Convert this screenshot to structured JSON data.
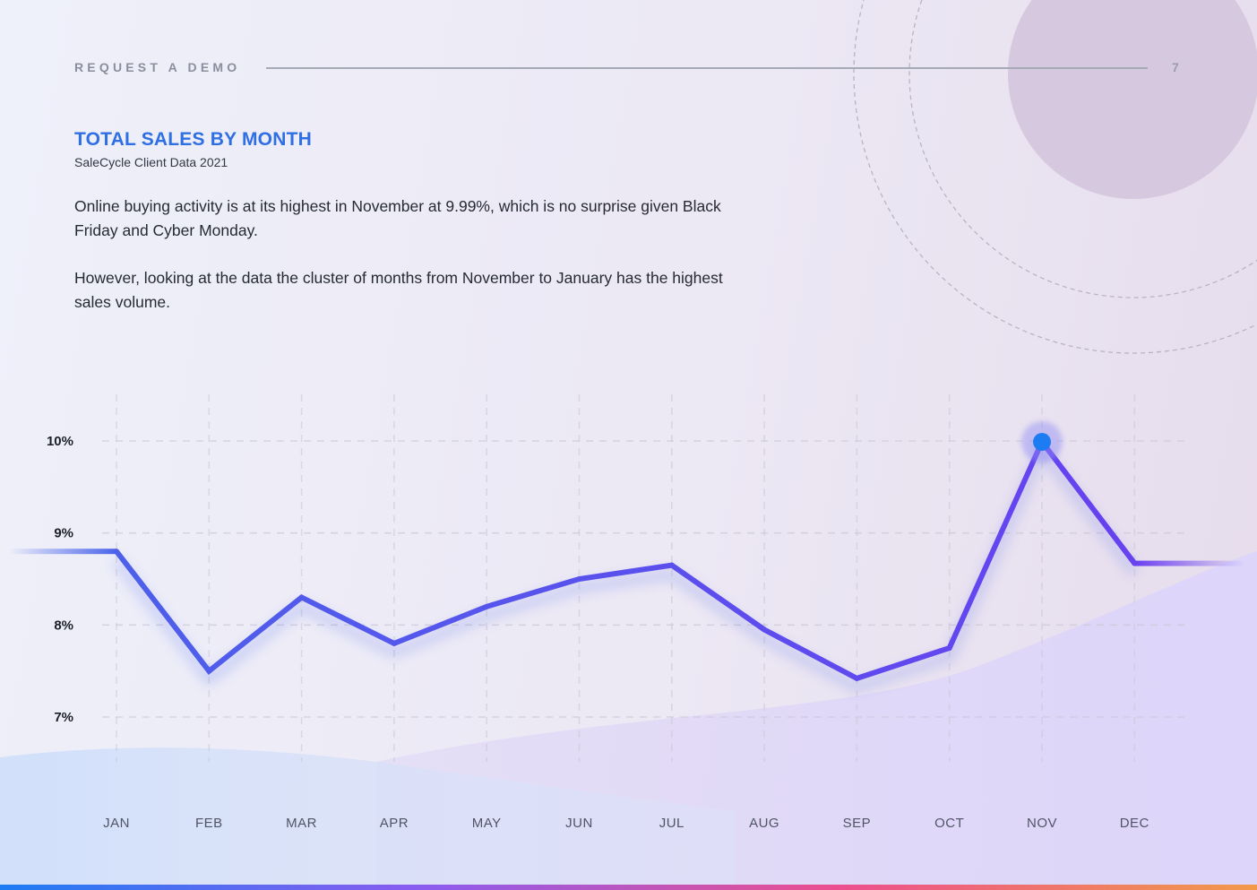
{
  "header": {
    "label": "REQUEST A DEMO",
    "page_number": "7"
  },
  "content": {
    "paragraphs": [
      "Online buying activity is at its highest in November at 9.99%, which is no surprise given Black Friday and Cyber Monday.",
      "However, looking at the data the cluster of months from November to January has the highest sales volume."
    ]
  },
  "colors": {
    "title": "#2f6fe4",
    "line_start": "#4a63ea",
    "line_end": "#6a3ef0",
    "highlight_dot": "#1e7cf2",
    "bottom_bar": [
      "#1e7cf2",
      "#8a5cf0",
      "#ec4f8e",
      "#f29a4a"
    ]
  },
  "chart_data": {
    "type": "line",
    "title": "TOTAL SALES BY MONTH",
    "subtitle": "SaleCycle Client Data 2021",
    "categories": [
      "JAN",
      "FEB",
      "MAR",
      "APR",
      "MAY",
      "JUN",
      "JUL",
      "AUG",
      "SEP",
      "OCT",
      "NOV",
      "DEC"
    ],
    "values": [
      8.8,
      7.5,
      8.3,
      7.8,
      8.2,
      8.5,
      8.65,
      7.95,
      7.42,
      7.75,
      9.99,
      8.67
    ],
    "y_ticks": [
      "10%",
      "9%",
      "8%",
      "7%"
    ],
    "ylim": [
      7,
      10
    ],
    "highlight": {
      "category": "NOV",
      "value": 9.99
    },
    "grid": true,
    "xlabel": "",
    "ylabel": ""
  }
}
